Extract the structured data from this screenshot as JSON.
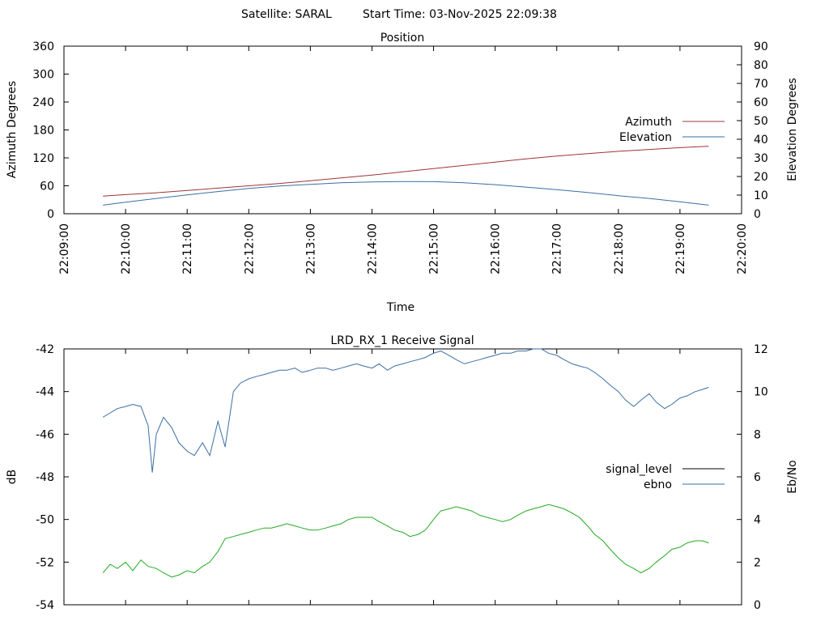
{
  "header": {
    "satellite": "Satellite: SARAL",
    "start_time": "Start Time: 03-Nov-2025 22:09:38"
  },
  "chart_data": [
    {
      "type": "line",
      "title": "Position",
      "xlabel": "Time",
      "ylabel_left": "Azimuth Degrees",
      "ylabel_right": "Elevation Degrees",
      "x_ticks": [
        "22:09:00",
        "22:10:00",
        "22:11:00",
        "22:12:00",
        "22:13:00",
        "22:14:00",
        "22:15:00",
        "22:16:00",
        "22:17:00",
        "22:18:00",
        "22:19:00",
        "22:20:00"
      ],
      "xlim": [
        "22:09:00",
        "22:20:00"
      ],
      "ylim_left": [
        0,
        360
      ],
      "yticks_left": [
        0,
        60,
        120,
        180,
        240,
        300,
        360
      ],
      "ylim_right": [
        0,
        90
      ],
      "yticks_right": [
        0,
        10,
        20,
        30,
        40,
        50,
        60,
        70,
        80,
        90
      ],
      "legend_position": "right",
      "grid": false,
      "series": [
        {
          "name": "Azimuth",
          "axis": "left",
          "color": "#a03434",
          "x": [
            "22:09:38",
            "22:10:00",
            "22:10:30",
            "22:11:00",
            "22:11:30",
            "22:12:00",
            "22:12:30",
            "22:13:00",
            "22:13:30",
            "22:14:00",
            "22:14:30",
            "22:15:00",
            "22:15:30",
            "22:16:00",
            "22:16:30",
            "22:17:00",
            "22:17:30",
            "22:18:00",
            "22:18:30",
            "22:19:00",
            "22:19:28"
          ],
          "y": [
            38,
            41,
            45,
            50,
            55,
            60,
            65,
            71,
            77,
            83,
            90,
            97,
            104,
            111,
            118,
            124,
            129,
            134,
            138,
            142,
            145
          ]
        },
        {
          "name": "Elevation",
          "axis": "right",
          "color": "#3a6ea5",
          "x": [
            "22:09:38",
            "22:10:00",
            "22:10:30",
            "22:11:00",
            "22:11:30",
            "22:12:00",
            "22:12:30",
            "22:13:00",
            "22:13:30",
            "22:14:00",
            "22:14:30",
            "22:15:00",
            "22:15:30",
            "22:16:00",
            "22:16:30",
            "22:17:00",
            "22:17:30",
            "22:18:00",
            "22:18:30",
            "22:19:00",
            "22:19:28"
          ],
          "y": [
            4.6,
            6.2,
            8.2,
            10.1,
            11.9,
            13.6,
            14.9,
            15.8,
            16.6,
            17.1,
            17.3,
            17.2,
            16.6,
            15.6,
            14.3,
            12.9,
            11.4,
            9.7,
            8.2,
            6.4,
            4.6
          ]
        }
      ]
    },
    {
      "type": "line",
      "title": "LRD_RX_1 Receive Signal",
      "ylabel_left": "dB",
      "ylabel_right": "Eb/No",
      "xlim": [
        "22:09:00",
        "22:20:00"
      ],
      "x_tick_marks": [
        "22:09:00",
        "22:10:00",
        "22:11:00",
        "22:12:00",
        "22:13:00",
        "22:14:00",
        "22:15:00",
        "22:16:00",
        "22:17:00",
        "22:18:00",
        "22:19:00",
        "22:20:00"
      ],
      "ylim_left": [
        -54,
        -42
      ],
      "yticks_left": [
        -54,
        -52,
        -50,
        -48,
        -46,
        -44,
        -42
      ],
      "ylim_right": [
        0,
        12
      ],
      "yticks_right": [
        0,
        2,
        4,
        6,
        8,
        10,
        12
      ],
      "legend_position": "right",
      "grid": false,
      "series": [
        {
          "name": "signal_level",
          "axis": "left",
          "color": "#000000",
          "x": [],
          "y": []
        },
        {
          "name": "ebno",
          "axis": "right",
          "color": "#3a6ea5",
          "x": [
            "22:09:38",
            "22:09:45",
            "22:09:52",
            "22:10:00",
            "22:10:07",
            "22:10:15",
            "22:10:22",
            "22:10:26",
            "22:10:30",
            "22:10:37",
            "22:10:45",
            "22:10:52",
            "22:11:00",
            "22:11:07",
            "22:11:15",
            "22:11:22",
            "22:11:30",
            "22:11:37",
            "22:11:45",
            "22:11:52",
            "22:12:00",
            "22:12:07",
            "22:12:15",
            "22:12:22",
            "22:12:30",
            "22:12:37",
            "22:12:45",
            "22:12:52",
            "22:13:00",
            "22:13:07",
            "22:13:15",
            "22:13:22",
            "22:13:30",
            "22:13:37",
            "22:13:45",
            "22:13:52",
            "22:14:00",
            "22:14:07",
            "22:14:15",
            "22:14:22",
            "22:14:30",
            "22:14:37",
            "22:14:45",
            "22:14:52",
            "22:15:00",
            "22:15:07",
            "22:15:15",
            "22:15:22",
            "22:15:30",
            "22:15:37",
            "22:15:45",
            "22:15:52",
            "22:16:00",
            "22:16:07",
            "22:16:15",
            "22:16:22",
            "22:16:30",
            "22:16:37",
            "22:16:45",
            "22:16:52",
            "22:17:00",
            "22:17:07",
            "22:17:15",
            "22:17:22",
            "22:17:30",
            "22:17:37",
            "22:17:45",
            "22:17:52",
            "22:18:00",
            "22:18:07",
            "22:18:15",
            "22:18:22",
            "22:18:30",
            "22:18:37",
            "22:18:45",
            "22:18:52",
            "22:19:00",
            "22:19:07",
            "22:19:15",
            "22:19:22",
            "22:19:28"
          ],
          "y": [
            8.8,
            9.0,
            9.2,
            9.3,
            9.4,
            9.3,
            8.4,
            6.2,
            8.0,
            8.8,
            8.3,
            7.6,
            7.2,
            7.0,
            7.6,
            7.0,
            8.6,
            7.4,
            10.0,
            10.4,
            10.6,
            10.7,
            10.8,
            10.9,
            11.0,
            11.0,
            11.1,
            10.9,
            11.0,
            11.1,
            11.1,
            11.0,
            11.1,
            11.2,
            11.3,
            11.2,
            11.1,
            11.3,
            11.0,
            11.2,
            11.3,
            11.4,
            11.5,
            11.6,
            11.8,
            11.9,
            11.7,
            11.5,
            11.3,
            11.4,
            11.5,
            11.6,
            11.7,
            11.8,
            11.8,
            11.9,
            11.9,
            12.0,
            12.0,
            11.8,
            11.7,
            11.5,
            11.3,
            11.2,
            11.1,
            10.9,
            10.6,
            10.3,
            10.0,
            9.6,
            9.3,
            9.6,
            9.9,
            9.5,
            9.2,
            9.4,
            9.7,
            9.8,
            10.0,
            10.1,
            10.2
          ]
        },
        {
          "name": "",
          "axis": "left",
          "color": "#22aa22",
          "x": [
            "22:09:38",
            "22:09:45",
            "22:09:52",
            "22:10:00",
            "22:10:07",
            "22:10:15",
            "22:10:22",
            "22:10:30",
            "22:10:37",
            "22:10:45",
            "22:10:52",
            "22:11:00",
            "22:11:07",
            "22:11:15",
            "22:11:22",
            "22:11:30",
            "22:11:37",
            "22:11:45",
            "22:11:52",
            "22:12:00",
            "22:12:07",
            "22:12:15",
            "22:12:22",
            "22:12:30",
            "22:12:37",
            "22:12:45",
            "22:12:52",
            "22:13:00",
            "22:13:07",
            "22:13:15",
            "22:13:22",
            "22:13:30",
            "22:13:37",
            "22:13:45",
            "22:13:52",
            "22:14:00",
            "22:14:07",
            "22:14:15",
            "22:14:22",
            "22:14:30",
            "22:14:37",
            "22:14:45",
            "22:14:52",
            "22:15:00",
            "22:15:07",
            "22:15:15",
            "22:15:22",
            "22:15:30",
            "22:15:37",
            "22:15:45",
            "22:15:52",
            "22:16:00",
            "22:16:07",
            "22:16:15",
            "22:16:22",
            "22:16:30",
            "22:16:37",
            "22:16:45",
            "22:16:52",
            "22:17:00",
            "22:17:07",
            "22:17:15",
            "22:17:22",
            "22:17:30",
            "22:17:37",
            "22:17:45",
            "22:17:52",
            "22:18:00",
            "22:18:07",
            "22:18:15",
            "22:18:22",
            "22:18:30",
            "22:18:37",
            "22:18:45",
            "22:18:52",
            "22:19:00",
            "22:19:07",
            "22:19:15",
            "22:19:22",
            "22:19:28"
          ],
          "y": [
            -52.5,
            -52.1,
            -52.3,
            -52.0,
            -52.4,
            -51.9,
            -52.2,
            -52.3,
            -52.5,
            -52.7,
            -52.6,
            -52.4,
            -52.5,
            -52.2,
            -52.0,
            -51.5,
            -50.9,
            -50.8,
            -50.7,
            -50.6,
            -50.5,
            -50.4,
            -50.4,
            -50.3,
            -50.2,
            -50.3,
            -50.4,
            -50.5,
            -50.5,
            -50.4,
            -50.3,
            -50.2,
            -50.0,
            -49.9,
            -49.9,
            -49.9,
            -50.1,
            -50.3,
            -50.5,
            -50.6,
            -50.8,
            -50.7,
            -50.5,
            -50.0,
            -49.6,
            -49.5,
            -49.4,
            -49.5,
            -49.6,
            -49.8,
            -49.9,
            -50.0,
            -50.1,
            -50.0,
            -49.8,
            -49.6,
            -49.5,
            -49.4,
            -49.3,
            -49.4,
            -49.5,
            -49.7,
            -49.9,
            -50.3,
            -50.7,
            -51.0,
            -51.4,
            -51.8,
            -52.1,
            -52.3,
            -52.5,
            -52.3,
            -52.0,
            -51.7,
            -51.4,
            -51.3,
            -51.1,
            -51.0,
            -51.0,
            -51.1
          ]
        }
      ]
    }
  ]
}
